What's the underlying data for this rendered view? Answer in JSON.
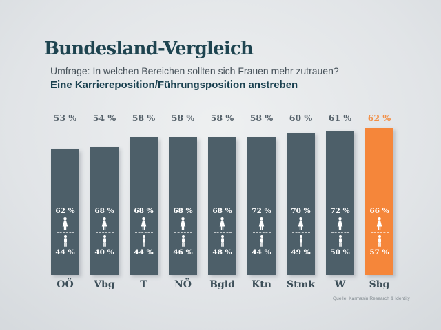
{
  "header": {
    "title": "Bundesland-Vergleich",
    "subtitle": "Umfrage: In welchen Bereichen sollten sich Frauen mehr zutrauen?",
    "statement": "Eine Karriereposition/Führungsposition anstreben"
  },
  "source": "Quelle: Karmasin Research & Identity",
  "colors": {
    "background_light": "#eef0f1",
    "background_dark": "#c2c8cd",
    "bar": "#4d5f69",
    "bar_highlight": "#f5863a",
    "value_label": "#56626b",
    "value_label_highlight": "#f28f46",
    "axis_label": "#3d4f59",
    "title": "#1e4450",
    "inner_text": "#ffffff"
  },
  "chart_data": {
    "type": "bar",
    "title": "Bundesland-Vergleich",
    "subtitle": "Umfrage: In welchen Bereichen sollten sich Frauen mehr zutrauen?",
    "statement": "Eine Karriereposition/Führungsposition anstreben",
    "categories": [
      "OÖ",
      "Vbg",
      "T",
      "NÖ",
      "Bgld",
      "Ktn",
      "Stmk",
      "W",
      "Sbg"
    ],
    "values": [
      53,
      54,
      58,
      58,
      58,
      58,
      60,
      61,
      62
    ],
    "female_values": [
      62,
      68,
      68,
      68,
      68,
      72,
      70,
      72,
      66
    ],
    "male_values": [
      44,
      40,
      44,
      46,
      48,
      44,
      49,
      50,
      57
    ],
    "value_suffix": " %",
    "highlighted_index": 8,
    "highlighted_category": "Sbg",
    "ylim": [
      0,
      62
    ],
    "grid": false,
    "legend": "none",
    "source": "Quelle: Karmasin Research & Identity"
  }
}
